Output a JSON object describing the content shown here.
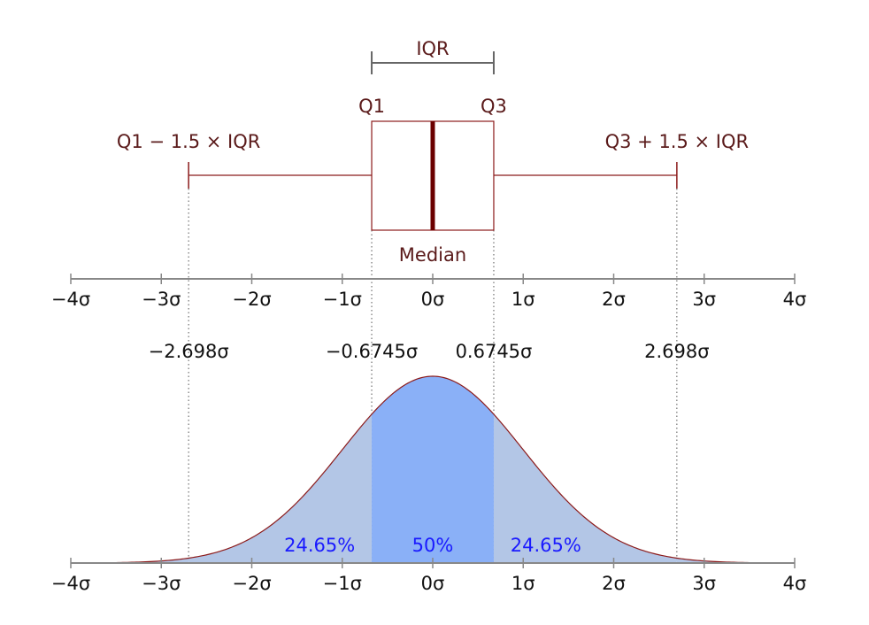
{
  "boxplot": {
    "iqr_label": "IQR",
    "q1_label": "Q1",
    "q3_label": "Q3",
    "lower_whisker_label": "Q1 − 1.5 × IQR",
    "upper_whisker_label": "Q3 + 1.5 × IQR",
    "median_label": "Median",
    "q1": -0.6745,
    "median": 0,
    "q3": 0.6745,
    "lower_whisker": -2.698,
    "upper_whisker": 2.698
  },
  "axis": {
    "ticks": [
      {
        "value": -4,
        "label": "−4σ"
      },
      {
        "value": -3,
        "label": "−3σ"
      },
      {
        "value": -2,
        "label": "−2σ"
      },
      {
        "value": -1,
        "label": "−1σ"
      },
      {
        "value": 0,
        "label": "0σ"
      },
      {
        "value": 1,
        "label": "1σ"
      },
      {
        "value": 2,
        "label": "2σ"
      },
      {
        "value": 3,
        "label": "3σ"
      },
      {
        "value": 4,
        "label": "4σ"
      }
    ],
    "range": [
      -4,
      4
    ]
  },
  "markers": [
    {
      "value": -2.698,
      "label": "−2.698σ"
    },
    {
      "value": -0.6745,
      "label": "−0.6745σ"
    },
    {
      "value": 0.6745,
      "label": "0.6745σ"
    },
    {
      "value": 2.698,
      "label": "2.698σ"
    }
  ],
  "distribution": {
    "regions": [
      {
        "from": -0.6745,
        "to": 0,
        "label": "24.65%",
        "label_at": -1.25
      },
      {
        "from": 0,
        "label": "50%",
        "label_at": 0
      },
      {
        "to": 0.6745,
        "label": "24.65%",
        "label_at": 1.25
      }
    ]
  },
  "colors": {
    "outline": "#8b1a1a",
    "median": "#6b0000",
    "bracket": "#666666",
    "tail_fill": "#b3c6e6",
    "center_fill": "#8ab0f7",
    "axis": "#888888"
  }
}
